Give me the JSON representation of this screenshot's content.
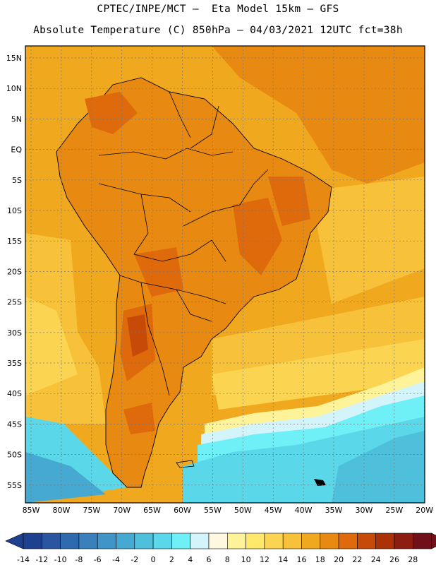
{
  "header": {
    "line1": "CPTEC/INPE/MCT –  Eta Model 15km – GFS",
    "line2": "Absolute Temperature (C) 850hPa – 04/03/2021 12UTC fct=38h"
  },
  "map": {
    "lat_labels": [
      "15N",
      "10N",
      "5N",
      "EQ",
      "5S",
      "10S",
      "15S",
      "20S",
      "25S",
      "30S",
      "35S",
      "40S",
      "45S",
      "50S",
      "55S"
    ],
    "lon_labels": [
      "85W",
      "80W",
      "75W",
      "70W",
      "65W",
      "60W",
      "55W",
      "50W",
      "45W",
      "40W",
      "35W",
      "30W",
      "25W",
      "20W"
    ]
  },
  "colorbar": {
    "tick_labels": [
      "-14",
      "-12",
      "-10",
      "-8",
      "-6",
      "-4",
      "-2",
      "0",
      "2",
      "4",
      "6",
      "8",
      "10",
      "12",
      "14",
      "16",
      "18",
      "20",
      "22",
      "24",
      "26",
      "28"
    ],
    "colors": [
      "#1f3f8f",
      "#2a55a0",
      "#2f6aae",
      "#3a80bd",
      "#3f95c8",
      "#46a9d2",
      "#4fc0dc",
      "#5ad7e8",
      "#6ff0f6",
      "#d4f4fb",
      "#fff8e0",
      "#fff39a",
      "#ffe86a",
      "#fbd552",
      "#f7c23a",
      "#f0a81f",
      "#e88a12",
      "#de6a0b",
      "#c84a08",
      "#ab3107",
      "#8c1d10",
      "#72101a"
    ]
  }
}
